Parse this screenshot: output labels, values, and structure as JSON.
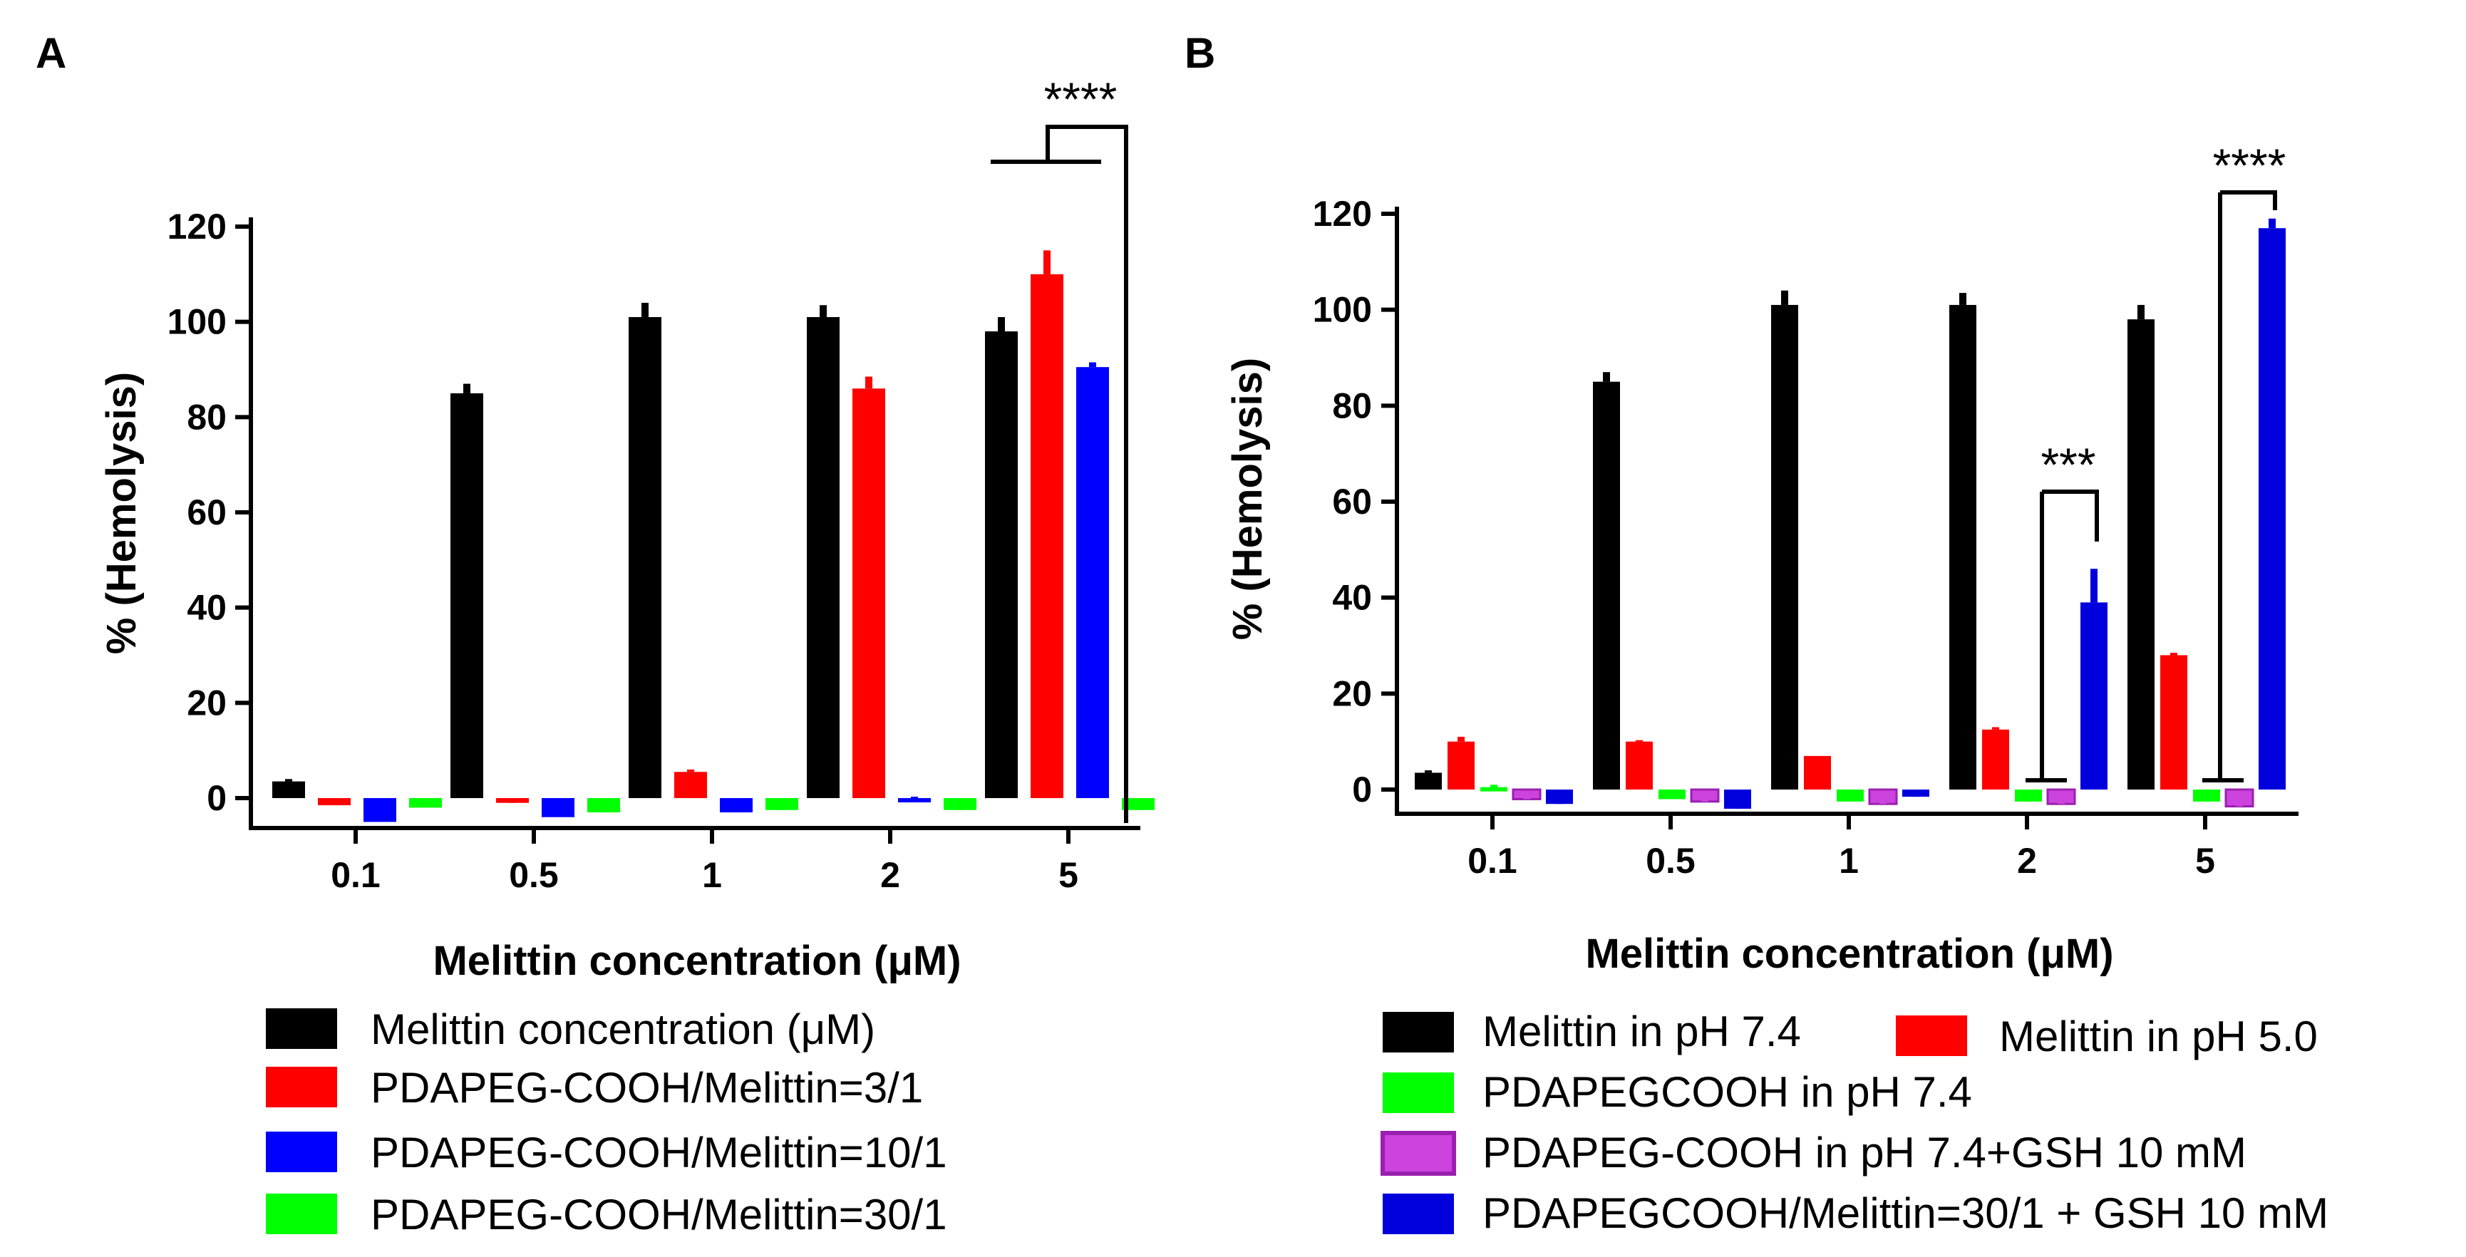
{
  "chart_data": [
    {
      "type": "bar",
      "panel": "A",
      "title": "",
      "xlabel": "Melittin concentration (μM)",
      "ylabel": "% (Hemolysis)",
      "ylim": [
        -5,
        120
      ],
      "yticks": [
        0,
        20,
        40,
        60,
        80,
        100,
        120
      ],
      "categories": [
        "0.1",
        "0.5",
        "1",
        "2",
        "5"
      ],
      "series": [
        {
          "name": "Melittin concentration (μM)",
          "color": "#000000",
          "values": [
            3.5,
            85,
            101,
            101,
            98
          ],
          "errors": [
            0.5,
            2,
            3,
            2.5,
            3
          ]
        },
        {
          "name": "PDAPEG-COOH/Melittin=3/1",
          "color": "#ff0000",
          "values": [
            -1.5,
            -1,
            5.5,
            86,
            110
          ],
          "errors": [
            0.5,
            0.5,
            0.5,
            2.5,
            5
          ]
        },
        {
          "name": "PDAPEG-COOH/Melittin=10/1",
          "color": "#0000ff",
          "values": [
            -5,
            -4,
            -3,
            0,
            90.5
          ],
          "errors": [
            0,
            0,
            0.5,
            0.3,
            1
          ]
        },
        {
          "name": "PDAPEG-COOH/Melittin=30/1",
          "color": "#00ff00",
          "values": [
            -2,
            -3,
            -2.5,
            -2.5,
            -2.5
          ],
          "errors": [
            1,
            2,
            1,
            1.5,
            0.5
          ]
        }
      ],
      "annotations": [
        {
          "text": "****",
          "category": "5"
        }
      ]
    },
    {
      "type": "bar",
      "panel": "B",
      "title": "",
      "xlabel": "Melittin concentration (μM)",
      "ylabel": "% (Hemolysis)",
      "ylim": [
        -5,
        120
      ],
      "yticks": [
        0,
        20,
        40,
        60,
        80,
        100,
        120
      ],
      "categories": [
        "0.1",
        "0.5",
        "1",
        "2",
        "5"
      ],
      "series": [
        {
          "name": "Melittin in pH 7.4",
          "color": "#000000",
          "values": [
            3.5,
            85,
            101,
            101,
            98
          ],
          "errors": [
            0.5,
            2,
            3,
            2.5,
            3
          ]
        },
        {
          "name": "Melittin in pH 5.0",
          "color": "#ff0000",
          "values": [
            10,
            10,
            7,
            12.5,
            28
          ],
          "errors": [
            1,
            0.3,
            0,
            0.5,
            0.5
          ]
        },
        {
          "name": "PDAPEGCOOH in pH 7.4",
          "color": "#00ff00",
          "values": [
            0.5,
            -2,
            -2.5,
            -2.5,
            -2.5
          ],
          "errors": [
            0.5,
            0.5,
            0.5,
            0.5,
            0.5
          ]
        },
        {
          "name": "PDAPEG-COOH in pH 7.4+GSH 10 mM",
          "color": "#cc44dd",
          "values": [
            -2,
            -2.5,
            -3,
            -3,
            -3.5
          ],
          "errors": [
            0.5,
            0.5,
            0.5,
            0.5,
            0.5
          ]
        },
        {
          "name": "PDAPEGCOOH/Melittin=30/1 + GSH 10 mM",
          "color": "#0000dd",
          "values": [
            -3,
            -4,
            -1.5,
            39,
            117
          ],
          "errors": [
            0.5,
            0.5,
            0.5,
            7,
            2
          ]
        }
      ],
      "annotations": [
        {
          "text": "***",
          "category": "2"
        },
        {
          "text": "****",
          "category": "5"
        }
      ]
    }
  ]
}
